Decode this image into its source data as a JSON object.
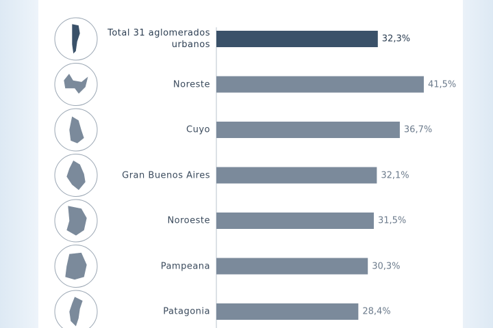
{
  "chart_data": {
    "type": "bar",
    "orientation": "horizontal",
    "categories": [
      "Total 31 aglomerados urbanos",
      "Noreste",
      "Cuyo",
      "Gran Buenos Aires",
      "Noroeste",
      "Pampeana",
      "Patagonia"
    ],
    "values": [
      32.3,
      41.5,
      36.7,
      32.1,
      31.5,
      30.3,
      28.4
    ],
    "value_labels": [
      "32,3%",
      "41,5%",
      "36,7%",
      "32,1%",
      "31,5%",
      "30,3%",
      "28,4%"
    ],
    "colors": [
      "#3a5169",
      "#7b8a9b",
      "#7b8a9b",
      "#7b8a9b",
      "#7b8a9b",
      "#7b8a9b",
      "#7b8a9b"
    ]
  }
}
